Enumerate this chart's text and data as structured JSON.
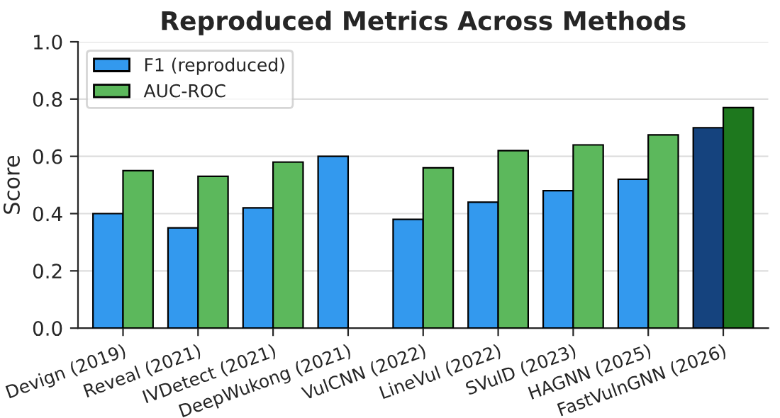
{
  "chart_data": {
    "type": "bar",
    "title": "Reproduced Metrics Across Methods",
    "ylabel": "Score",
    "categories": [
      "Devign (2019)",
      "Reveal (2021)",
      "IVDetect (2021)",
      "DeepWukong (2021)",
      "VulCNN (2022)",
      "LineVul (2022)",
      "SVulD (2023)",
      "HAGNN (2025)",
      "FastVulnGNN (2026)"
    ],
    "series": [
      {
        "name": "F1 (reproduced)",
        "color": "#3399ee",
        "colors": [
          "#3399ee",
          "#3399ee",
          "#3399ee",
          "#3399ee",
          "#3399ee",
          "#3399ee",
          "#3399ee",
          "#3399ee",
          "#15437e"
        ],
        "values": [
          0.4,
          0.35,
          0.42,
          0.6,
          0.38,
          0.44,
          0.48,
          0.52,
          0.7
        ]
      },
      {
        "name": "AUC-ROC",
        "color": "#5cb85c",
        "colors": [
          "#5cb85c",
          "#5cb85c",
          "#5cb85c",
          "#5cb85c",
          "#5cb85c",
          "#5cb85c",
          "#5cb85c",
          "#5cb85c",
          "#1e781e"
        ],
        "values": [
          0.55,
          0.53,
          0.58,
          null,
          0.56,
          0.62,
          0.64,
          0.675,
          0.77
        ]
      }
    ],
    "ylim": [
      0,
      1.0
    ],
    "yticks": [
      {
        "value": 0,
        "label": "0.0"
      },
      {
        "value": 0.2,
        "label": "0.2"
      },
      {
        "value": 0.4,
        "label": "0.4"
      },
      {
        "value": 0.6,
        "label": "0.6"
      },
      {
        "value": 0.8,
        "label": "0.8"
      },
      {
        "value": 1.0,
        "label": "1.0"
      }
    ],
    "grid": "y",
    "legend": "top left"
  }
}
